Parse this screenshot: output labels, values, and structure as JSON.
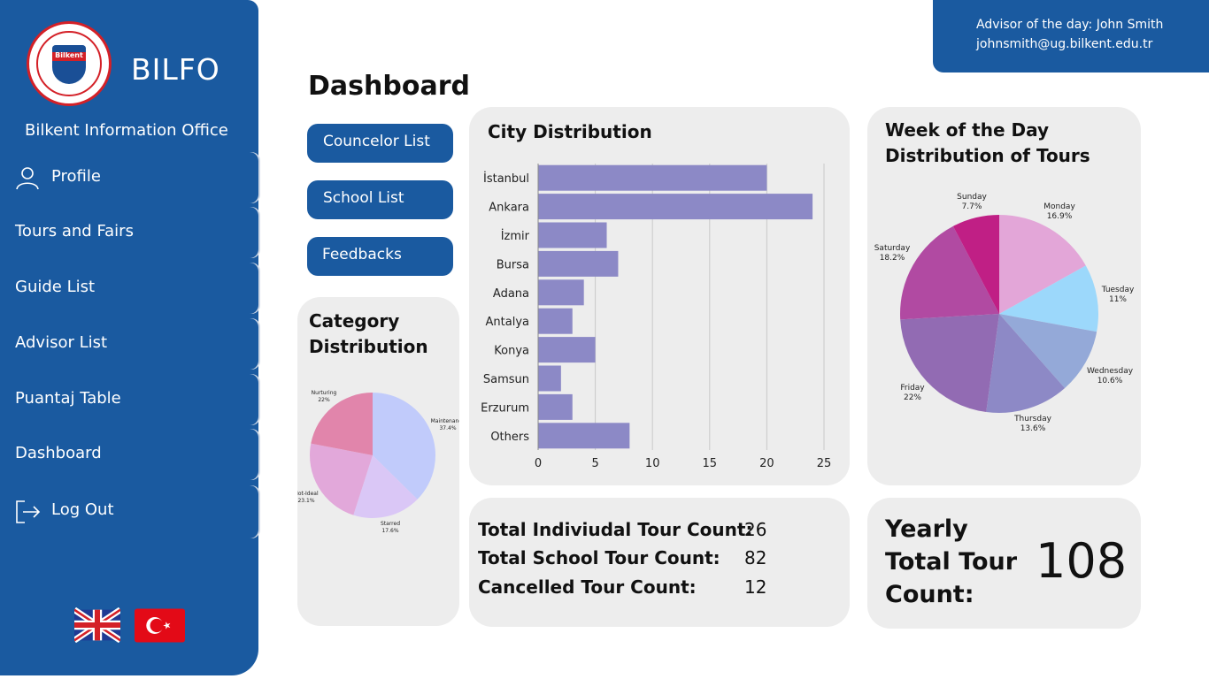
{
  "brand": {
    "name": "BILFO",
    "subtitle": "Bilkent Information Office",
    "logo_text": "Bilkent"
  },
  "nav": {
    "items": [
      {
        "label": "Profile",
        "icon": "user-icon"
      },
      {
        "label": "Tours and Fairs"
      },
      {
        "label": "Guide List"
      },
      {
        "label": "Advisor List"
      },
      {
        "label": "Puantaj Table"
      },
      {
        "label": "Dashboard"
      },
      {
        "label": "Log Out",
        "icon": "logout-icon"
      }
    ]
  },
  "advisor": {
    "line1": "Advisor of the day: John Smith",
    "line2": "johnsmith@ug.bilkent.edu.tr"
  },
  "page_title": "Dashboard",
  "buttons": {
    "counselor": "Councelor List",
    "school": "School List",
    "feedbacks": "Feedbacks"
  },
  "counts": {
    "individual_label": "Total Indiviudal Tour Count:",
    "individual_value": "26",
    "school_label": "Total School Tour Count:",
    "school_value": "82",
    "cancelled_label": "Cancelled Tour Count:",
    "cancelled_value": "12"
  },
  "yearly": {
    "line1": "Yearly",
    "line2": "Total Tour",
    "line3": "Count:",
    "value": "108"
  },
  "colors": {
    "primary": "#1a5aa0",
    "panel": "#ededed",
    "bar": "#8c89c6"
  },
  "chart_data": [
    {
      "type": "bar",
      "orientation": "horizontal",
      "title": "City Distribution",
      "categories": [
        "İstanbul",
        "Ankara",
        "İzmir",
        "Bursa",
        "Adana",
        "Antalya",
        "Konya",
        "Samsun",
        "Erzurum",
        "Others"
      ],
      "values": [
        20,
        24,
        6,
        7,
        4,
        3,
        5,
        2,
        3,
        8
      ],
      "xlim": [
        0,
        25
      ],
      "xticks": [
        "0",
        "5",
        "10",
        "15",
        "20",
        "25"
      ],
      "grid": true
    },
    {
      "type": "pie",
      "title": "Category Distribution",
      "title_lines": [
        "Category",
        "Distribution"
      ],
      "slices": [
        {
          "label": "Maintenance",
          "pct_label": "37.4%",
          "value": 37.4,
          "color": "#c1cbfb"
        },
        {
          "label": "Starred",
          "pct_label": "17.6%",
          "value": 17.6,
          "color": "#dac7f6"
        },
        {
          "label": "Not-Ideal",
          "pct_label": "23.1%",
          "value": 23.1,
          "color": "#e2a8da"
        },
        {
          "label": "Nurturing",
          "pct_label": "22%",
          "value": 22,
          "color": "#e185ab"
        }
      ]
    },
    {
      "type": "pie",
      "title": "Week of the Day Distribution of Tours",
      "title_lines": [
        "Week of the Day",
        "Distribution of Tours"
      ],
      "slices": [
        {
          "label": "Monday",
          "pct_label": "16.9%",
          "value": 16.9,
          "color": "#e3a6d8"
        },
        {
          "label": "Tuesday",
          "pct_label": "11%",
          "value": 11,
          "color": "#9cd8fb"
        },
        {
          "label": "Wednesday",
          "pct_label": "10.6%",
          "value": 10.6,
          "color": "#94a9d8"
        },
        {
          "label": "Thursday",
          "pct_label": "13.6%",
          "value": 13.6,
          "color": "#8d89c6"
        },
        {
          "label": "Friday",
          "pct_label": "22%",
          "value": 22,
          "color": "#926bb3"
        },
        {
          "label": "Saturday",
          "pct_label": "18.2%",
          "value": 18.2,
          "color": "#b14aa2"
        },
        {
          "label": "Sunday",
          "pct_label": "7.7%",
          "value": 7.7,
          "color": "#c01f85"
        }
      ]
    }
  ]
}
